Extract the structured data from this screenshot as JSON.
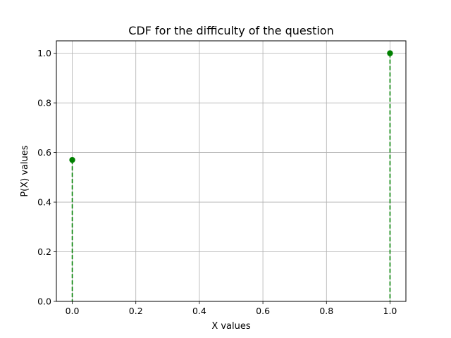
{
  "chart_data": {
    "type": "scatter",
    "title": "CDF for the difficulty of the question",
    "xlabel": "X values",
    "ylabel": "P(X) values",
    "xlim": [
      -0.05,
      1.05
    ],
    "ylim": [
      0,
      1.05
    ],
    "xticks": [
      0.0,
      0.2,
      0.4,
      0.6,
      0.8,
      1.0
    ],
    "xtick_labels": [
      "0.0",
      "0.2",
      "0.4",
      "0.6",
      "0.8",
      "1.0"
    ],
    "yticks": [
      0.0,
      0.2,
      0.4,
      0.6,
      0.8,
      1.0
    ],
    "ytick_labels": [
      "0.0",
      "0.2",
      "0.4",
      "0.6",
      "0.8",
      "1.0"
    ],
    "grid": true,
    "series": [
      {
        "x": [
          0,
          1
        ],
        "y": [
          0.57,
          1.0
        ],
        "color": "#008000",
        "marker": "circle",
        "vertical_lines": "dashed",
        "line_color": "#008000"
      }
    ]
  }
}
